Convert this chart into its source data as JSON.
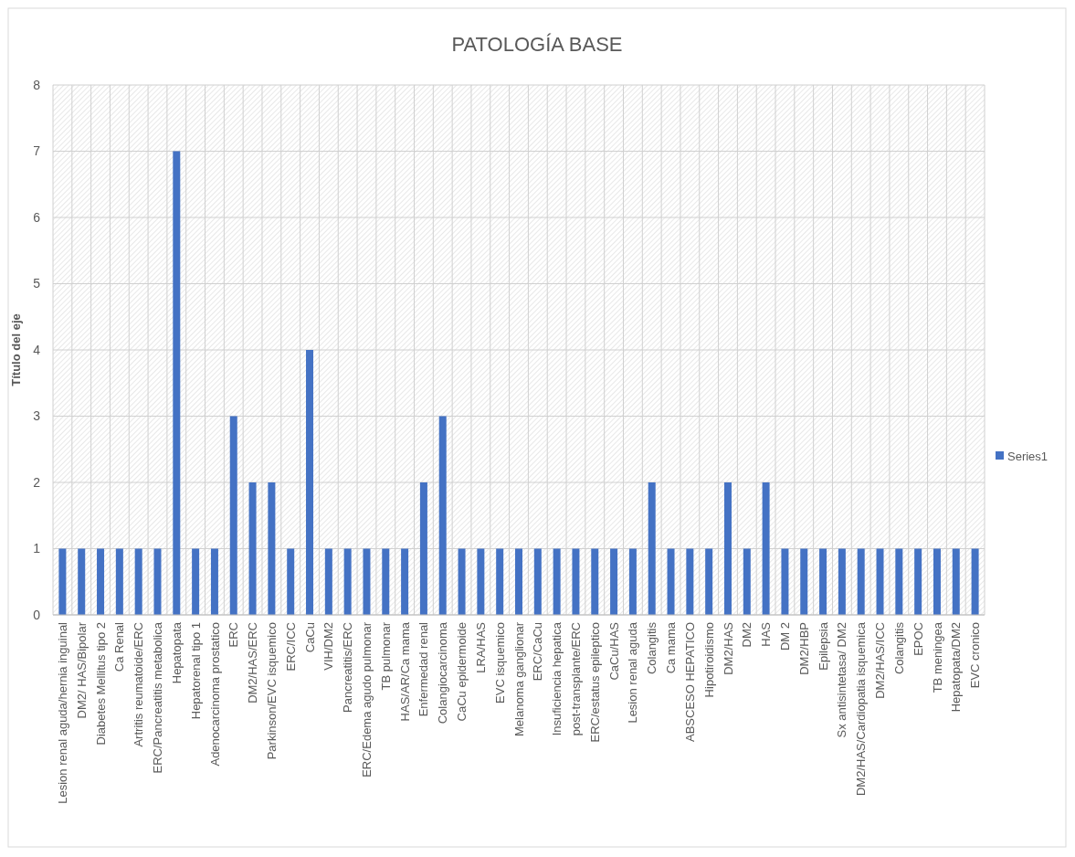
{
  "chart_data": {
    "type": "bar",
    "title": "PATOLOGÍA BASE",
    "ylabel": "Título del eje",
    "categories": [
      "Lesion renal aguda/hernia inguinal",
      "DM2/ HAS/Bipolar",
      "Diabetes Mellitus tipo 2",
      "Ca Renal",
      "Artritis reumatoide/ERC",
      "ERC/Pancreatitis metabolica",
      "Hepatopata",
      "Hepatorenal tipo 1",
      "Adenocarcinoma prostatico",
      "ERC",
      "DM2/HAS/ERC",
      "Parkinson/EVC isquemico",
      "ERC/ICC",
      "CaCu",
      "VIH/DM2",
      "Pancreatitis/ERC",
      "ERC/Edema agudo pulmonar",
      "TB pulmonar",
      "HAS/AR/Ca mama",
      "Enfermedad renal",
      "Colangiocarcinoma",
      "CaCu epidermoide",
      "LRA/HAS",
      "EVC isquemico",
      "Melanoma ganglionar",
      "ERC/CaCu",
      "Insuficiencia hepatica",
      "post-transplante/ERC",
      "ERC/estatus epileptico",
      "CaCu/HAS",
      "Lesion renal aguda",
      "Colangitis",
      "Ca mama",
      "ABSCESO HEPATICO",
      "Hipotiroidismo",
      "DM2/HAS",
      "DM2",
      "HAS",
      "DM 2",
      "DM2/HBP",
      "Epilepsia",
      "Sx antisintetasa/ DM2",
      "DM2/HAS/Cardiopatia isquemica",
      "DM2/HAS/ICC",
      "Colangitis",
      "EPOC",
      "TB meningea",
      "Hepatopata/DM2",
      "EVC cronico"
    ],
    "series": [
      {
        "name": "Series1",
        "color": "#4472c4",
        "values": [
          1,
          1,
          1,
          1,
          1,
          1,
          7,
          1,
          1,
          3,
          2,
          2,
          1,
          4,
          1,
          1,
          1,
          1,
          1,
          2,
          3,
          1,
          1,
          1,
          1,
          1,
          1,
          1,
          1,
          1,
          1,
          2,
          1,
          1,
          1,
          2,
          1,
          2,
          1,
          1,
          1,
          1,
          1,
          1,
          1,
          1,
          1,
          1,
          1
        ]
      }
    ],
    "ylim": [
      0,
      8
    ],
    "yticks": [
      0,
      1,
      2,
      3,
      4,
      5,
      6,
      7,
      8
    ],
    "grid": true,
    "legend": "right"
  }
}
